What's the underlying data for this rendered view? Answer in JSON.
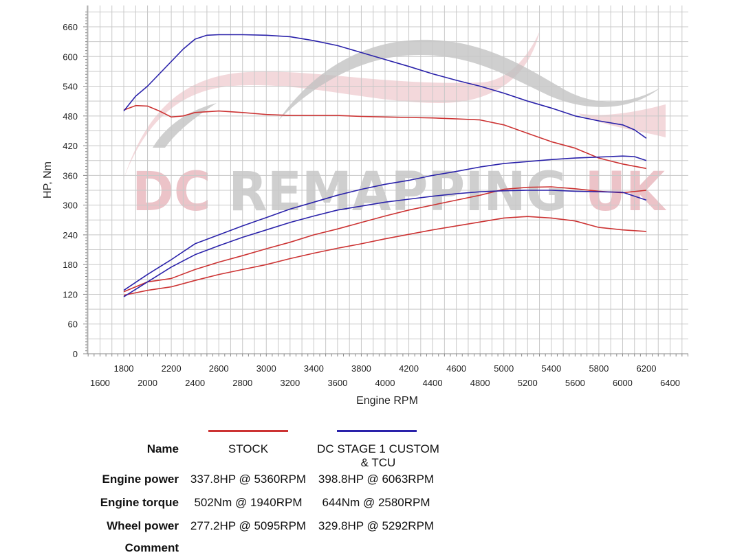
{
  "chart_data": {
    "type": "line",
    "title": "",
    "xlabel": "Engine RPM",
    "ylabel": "HP, Nm",
    "xlim": [
      1800,
      6200
    ],
    "ylim": [
      0,
      660
    ],
    "x_ticks_upper": [
      1800,
      2200,
      2600,
      3000,
      3400,
      3800,
      4200,
      4600,
      5000,
      5400,
      5800,
      6200
    ],
    "x_ticks_lower": [
      1600,
      2000,
      2400,
      2800,
      3200,
      3600,
      4000,
      4400,
      4800,
      5200,
      5600,
      6000,
      6400
    ],
    "y_ticks": [
      0,
      60,
      120,
      180,
      240,
      300,
      360,
      420,
      480,
      540,
      600,
      660
    ],
    "grid": true,
    "watermark": "DC REMAPPING UK",
    "series": [
      {
        "name": "STOCK",
        "metric": "Engine torque",
        "color": "#cc3333",
        "x": [
          1800,
          1900,
          2000,
          2100,
          2200,
          2300,
          2400,
          2600,
          2800,
          3000,
          3200,
          3400,
          3600,
          3800,
          4000,
          4200,
          4400,
          4600,
          4800,
          5000,
          5200,
          5400,
          5600,
          5800,
          6000,
          6200
        ],
        "y": [
          492,
          501,
          500,
          490,
          478,
          480,
          487,
          490,
          487,
          483,
          481,
          481,
          481,
          479,
          478,
          477,
          476,
          474,
          472,
          462,
          445,
          428,
          415,
          395,
          383,
          374
        ]
      },
      {
        "name": "STOCK",
        "metric": "Engine power",
        "color": "#cc3333",
        "x": [
          1800,
          2000,
          2200,
          2400,
          2600,
          2800,
          3000,
          3200,
          3400,
          3600,
          3800,
          4000,
          4200,
          4400,
          4600,
          4800,
          5000,
          5200,
          5400,
          5600,
          5800,
          6000,
          6200
        ],
        "y": [
          125,
          145,
          152,
          170,
          185,
          198,
          212,
          225,
          240,
          252,
          265,
          278,
          290,
          300,
          310,
          320,
          332,
          336,
          337,
          333,
          328,
          325,
          330
        ]
      },
      {
        "name": "STOCK",
        "metric": "Wheel power",
        "color": "#cc3333",
        "x": [
          1800,
          2000,
          2200,
          2400,
          2600,
          2800,
          3000,
          3200,
          3400,
          3600,
          3800,
          4000,
          4200,
          4400,
          4600,
          4800,
          5000,
          5200,
          5400,
          5600,
          5800,
          6000,
          6200
        ],
        "y": [
          118,
          128,
          135,
          148,
          160,
          170,
          180,
          192,
          203,
          213,
          222,
          232,
          241,
          250,
          258,
          266,
          274,
          277,
          274,
          268,
          255,
          250,
          247
        ]
      },
      {
        "name": "DC STAGE 1 CUSTOM & TCU",
        "metric": "Engine torque",
        "color": "#2a22aa",
        "x": [
          1800,
          1900,
          2000,
          2100,
          2200,
          2300,
          2400,
          2500,
          2600,
          2800,
          3000,
          3200,
          3400,
          3600,
          3800,
          4000,
          4200,
          4400,
          4600,
          4800,
          5000,
          5200,
          5400,
          5600,
          5800,
          6000,
          6100,
          6200
        ],
        "y": [
          490,
          520,
          540,
          565,
          590,
          615,
          635,
          643,
          644,
          644,
          643,
          640,
          632,
          622,
          608,
          594,
          580,
          565,
          552,
          540,
          526,
          510,
          496,
          480,
          470,
          462,
          452,
          435
        ]
      },
      {
        "name": "DC STAGE 1 CUSTOM & TCU",
        "metric": "Engine power",
        "color": "#2a22aa",
        "x": [
          1800,
          2000,
          2200,
          2400,
          2600,
          2800,
          3000,
          3200,
          3400,
          3600,
          3800,
          4000,
          4200,
          4400,
          4600,
          4800,
          5000,
          5200,
          5400,
          5600,
          5800,
          6000,
          6100,
          6200
        ],
        "y": [
          128,
          160,
          190,
          222,
          240,
          258,
          275,
          292,
          306,
          320,
          332,
          342,
          350,
          360,
          368,
          377,
          384,
          388,
          392,
          395,
          397,
          399,
          398,
          390
        ]
      },
      {
        "name": "DC STAGE 1 CUSTOM & TCU",
        "metric": "Wheel power",
        "color": "#2a22aa",
        "x": [
          1800,
          2000,
          2200,
          2400,
          2600,
          2800,
          3000,
          3200,
          3400,
          3600,
          3800,
          4000,
          4200,
          4400,
          4600,
          4800,
          5000,
          5200,
          5400,
          5600,
          5800,
          6000,
          6200
        ],
        "y": [
          115,
          145,
          175,
          200,
          218,
          235,
          250,
          265,
          278,
          290,
          298,
          306,
          312,
          318,
          323,
          327,
          329,
          330,
          330,
          328,
          327,
          326,
          310
        ]
      }
    ]
  },
  "legend": {
    "name_label": "Name",
    "col1_name": "STOCK",
    "col2_name_line1": "DC STAGE 1 CUSTOM",
    "col2_name_line2": "& TCU",
    "col1_color": "#cc3333",
    "col2_color": "#2a22aa",
    "rows": [
      {
        "label": "Engine power",
        "stock": "337.8HP @  5360RPM",
        "stage1": "398.8HP @  6063RPM"
      },
      {
        "label": "Engine torque",
        "stock": "502Nm @ 1940RPM",
        "stage1": "644Nm @ 2580RPM"
      },
      {
        "label": "Wheel power",
        "stock": "277.2HP @  5095RPM",
        "stage1": "329.8HP @  5292RPM"
      }
    ],
    "comment_label": "Comment"
  }
}
